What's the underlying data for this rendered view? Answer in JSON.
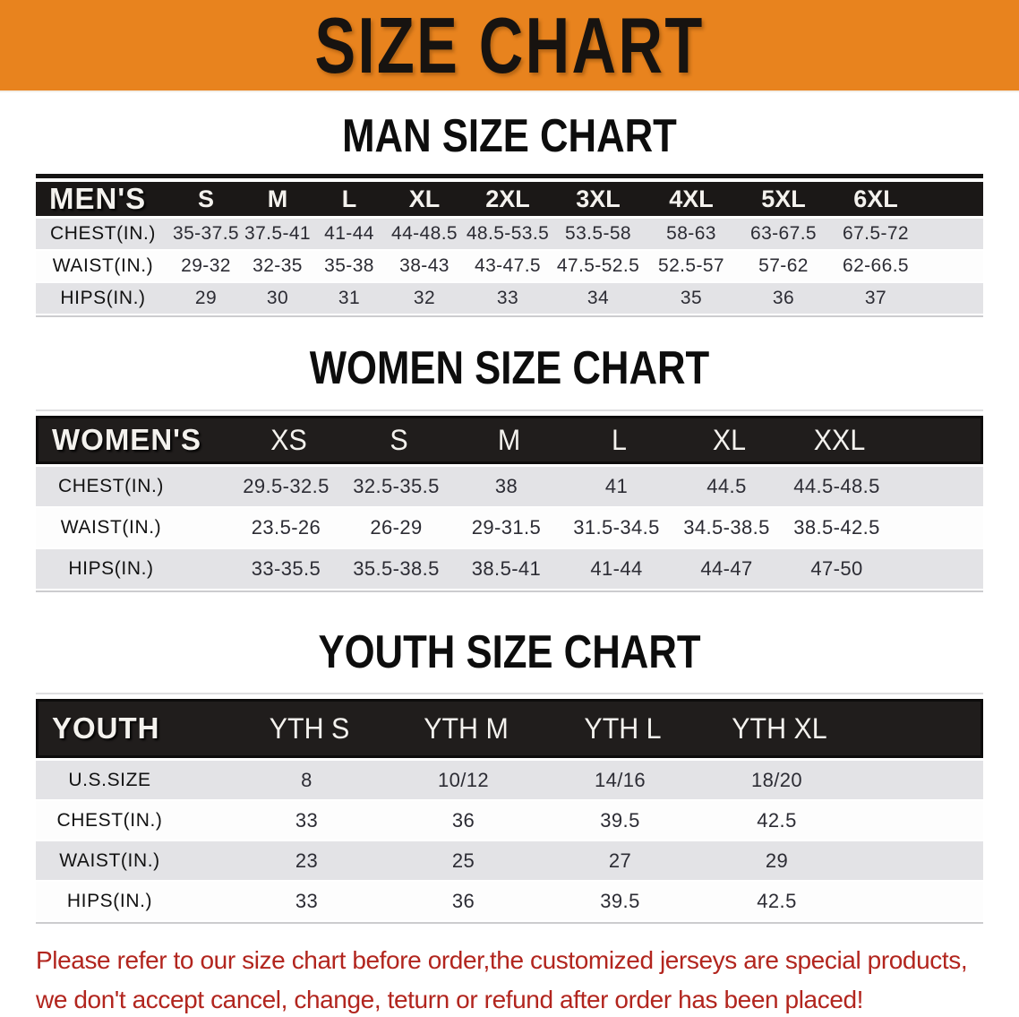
{
  "banner": {
    "title": "SIZE CHART"
  },
  "colors": {
    "banner_orange": "#e8831e",
    "header_black": "#1b1817",
    "row_shade_gray": "#e3e3e6",
    "notice_red": "#b2251e"
  },
  "sections": [
    {
      "id": "men",
      "heading": "MAN SIZE CHART",
      "table": {
        "corner_label": "MEN'S",
        "sizes": [
          "S",
          "M",
          "L",
          "XL",
          "2XL",
          "3XL",
          "4XL",
          "5XL",
          "6XL"
        ],
        "rows": [
          {
            "label": "CHEST(IN.)",
            "values": [
              "35-37.5",
              "37.5-41",
              "41-44",
              "44-48.5",
              "48.5-53.5",
              "53.5-58",
              "58-63",
              "63-67.5",
              "67.5-72"
            ]
          },
          {
            "label": "WAIST(IN.)",
            "values": [
              "29-32",
              "32-35",
              "35-38",
              "38-43",
              "43-47.5",
              "47.5-52.5",
              "52.5-57",
              "57-62",
              "62-66.5"
            ]
          },
          {
            "label": "HIPS(IN.)",
            "values": [
              "29",
              "30",
              "31",
              "32",
              "33",
              "34",
              "35",
              "36",
              "37"
            ]
          }
        ]
      }
    },
    {
      "id": "women",
      "heading": "WOMEN SIZE CHART",
      "table": {
        "corner_label": "WOMEN'S",
        "sizes": [
          "XS",
          "S",
          "M",
          "L",
          "XL",
          "XXL"
        ],
        "rows": [
          {
            "label": "CHEST(IN.)",
            "values": [
              "29.5-32.5",
              "32.5-35.5",
              "38",
              "41",
              "44.5",
              "44.5-48.5"
            ]
          },
          {
            "label": "WAIST(IN.)",
            "values": [
              "23.5-26",
              "26-29",
              "29-31.5",
              "31.5-34.5",
              "34.5-38.5",
              "38.5-42.5"
            ]
          },
          {
            "label": "HIPS(IN.)",
            "values": [
              "33-35.5",
              "35.5-38.5",
              "38.5-41",
              "41-44",
              "44-47",
              "47-50"
            ]
          }
        ]
      }
    },
    {
      "id": "youth",
      "heading": "YOUTH SIZE CHART",
      "table": {
        "corner_label": "YOUTH",
        "sizes": [
          "YTH S",
          "YTH M",
          "YTH L",
          "YTH XL"
        ],
        "rows": [
          {
            "label": "U.S.SIZE",
            "values": [
              "8",
              "10/12",
              "14/16",
              "18/20"
            ]
          },
          {
            "label": "CHEST(IN.)",
            "values": [
              "33",
              "36",
              "39.5",
              "42.5"
            ]
          },
          {
            "label": "WAIST(IN.)",
            "values": [
              "23",
              "25",
              "27",
              "29"
            ]
          },
          {
            "label": "HIPS(IN.)",
            "values": [
              "33",
              "36",
              "39.5",
              "42.5"
            ]
          }
        ]
      }
    }
  ],
  "footer": {
    "line1": "Please refer to our size chart before order,the customized jerseys are special products,",
    "line2": "we don't accept cancel, change, teturn or refund after order has been placed!"
  }
}
